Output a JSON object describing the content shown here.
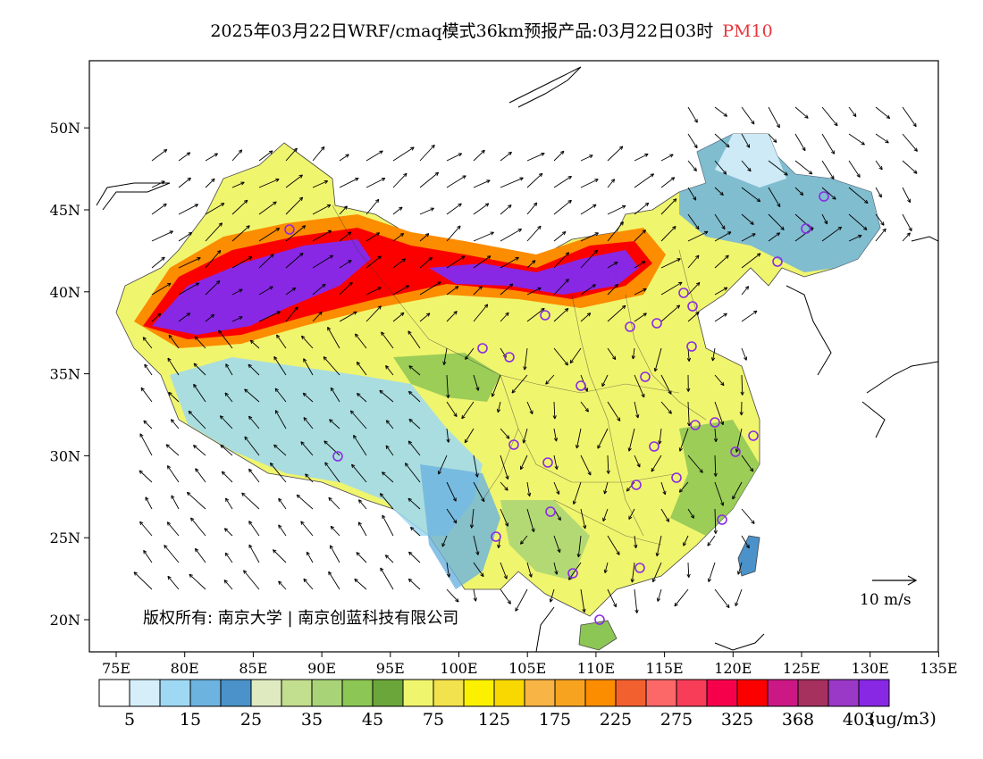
{
  "title": {
    "main": "2025年03月22日WRF/cmaq模式36km预报产品:03月22日03时",
    "species": "PM10"
  },
  "axes": {
    "x_ticks": [
      "75E",
      "80E",
      "85E",
      "90E",
      "95E",
      "100E",
      "105E",
      "110E",
      "115E",
      "120E",
      "125E",
      "130E",
      "135E"
    ],
    "y_ticks": [
      "20N",
      "25N",
      "30N",
      "35N",
      "40N",
      "45N",
      "50N"
    ]
  },
  "copyright": "版权所有: 南京大学 | 南京创蓝科技有限公司",
  "wind_reference": "10  m/s",
  "colorbar": {
    "colors": [
      "#ffffff",
      "#d5eefa",
      "#9ed8f3",
      "#6cb3e0",
      "#4a92c9",
      "#dfeac0",
      "#c2de8f",
      "#a8d377",
      "#8cc654",
      "#6ba63a",
      "#f0f56e",
      "#f2e24d",
      "#fbf000",
      "#f8d800",
      "#f8b444",
      "#f8a320",
      "#fc8c00",
      "#f36030",
      "#fc6868",
      "#f73d58",
      "#f6004c",
      "#fc0000",
      "#cc1884",
      "#a6305e",
      "#9a38c8",
      "#8828e4"
    ],
    "labels": [
      "5",
      "15",
      "25",
      "35",
      "45",
      "75",
      "125",
      "175",
      "225",
      "275",
      "325",
      "368",
      "403"
    ],
    "units": "(ug/m3)"
  },
  "city_markers_color": "#8a2be2",
  "map_colors": {
    "extreme": "#8828e4",
    "very_high": "#fc0000",
    "high": "#fc8c00",
    "moderate": "#fbf000",
    "low": "#8cc654",
    "clean": "#9ed8f3"
  }
}
